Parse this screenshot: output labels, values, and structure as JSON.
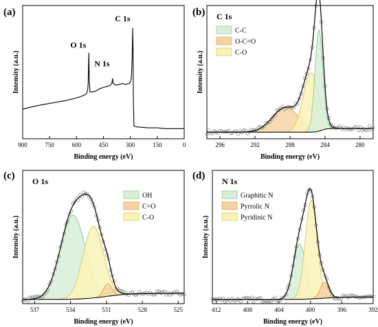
{
  "panels": [
    {
      "id": "a",
      "label": "(a)",
      "type": "line",
      "xlabel": "Binding energy (eV)",
      "ylabel": "Intensity (a.u.)",
      "xlim": [
        900,
        0
      ],
      "ticks": [
        900,
        750,
        600,
        450,
        300,
        150,
        0
      ],
      "annotations": [
        {
          "text": "O 1s",
          "x": 531,
          "y": 1.02
        },
        {
          "text": "N 1s",
          "x": 400,
          "y": 0.8
        },
        {
          "text": "C 1s",
          "x": 285,
          "y": 1.33
        }
      ],
      "survey": [
        [
          900,
          0.3
        ],
        [
          820,
          0.34
        ],
        [
          740,
          0.37
        ],
        [
          660,
          0.4
        ],
        [
          600,
          0.43
        ],
        [
          560,
          0.46
        ],
        [
          545,
          0.48
        ],
        [
          538,
          0.52
        ],
        [
          535,
          0.6
        ],
        [
          532,
          0.9
        ],
        [
          531,
          0.96
        ],
        [
          529,
          0.64
        ],
        [
          525,
          0.5
        ],
        [
          515,
          0.5
        ],
        [
          495,
          0.51
        ],
        [
          470,
          0.54
        ],
        [
          440,
          0.56
        ],
        [
          420,
          0.57
        ],
        [
          410,
          0.58
        ],
        [
          402,
          0.61
        ],
        [
          399,
          0.66
        ],
        [
          396,
          0.6
        ],
        [
          380,
          0.58
        ],
        [
          360,
          0.59
        ],
        [
          345,
          0.6
        ],
        [
          330,
          0.59
        ],
        [
          305,
          0.6
        ],
        [
          295,
          0.65
        ],
        [
          290,
          0.9
        ],
        [
          287,
          1.25
        ],
        [
          285,
          1.0
        ],
        [
          283,
          0.4
        ],
        [
          280,
          0.1
        ],
        [
          260,
          0.09
        ],
        [
          200,
          0.08
        ],
        [
          150,
          0.08
        ],
        [
          100,
          0.07
        ],
        [
          50,
          0.07
        ],
        [
          0,
          0.07
        ]
      ]
    },
    {
      "id": "b",
      "label": "(b)",
      "title": "C 1s",
      "type": "xps-fit",
      "xlabel": "Binding energy (eV)",
      "ylabel": "Intensity (a.u.)",
      "xlim": [
        297.5,
        278.5
      ],
      "ticks": [
        296,
        292,
        288,
        284,
        280
      ],
      "background": {
        "left": 0.05,
        "right": 0.02,
        "center": 284.4,
        "width": 0.3
      },
      "components": [
        {
          "name": "C-C",
          "center": 284.7,
          "height": 0.82,
          "sigma": 0.45,
          "fill": "#d8efd8",
          "stroke": "#8fce9c"
        },
        {
          "name": "O-C=O",
          "center": 288.5,
          "height": 0.2,
          "sigma": 1.5,
          "fill": "#f6d3a5",
          "stroke": "#e6a24b"
        },
        {
          "name": "C-O",
          "center": 285.6,
          "height": 0.48,
          "sigma": 0.9,
          "fill": "#faf3b8",
          "stroke": "#dccb64"
        }
      ],
      "legend": {
        "position": "top-left"
      }
    },
    {
      "id": "c",
      "label": "(c)",
      "title": "O 1s",
      "type": "xps-fit",
      "xlabel": "Binding energy (eV)",
      "ylabel": "Intensity (a.u.)",
      "xlim": [
        538,
        524.5
      ],
      "ticks": [
        537,
        534,
        531,
        528,
        525
      ],
      "background": {
        "left": 0.05,
        "right": 0.0,
        "center": 531.0,
        "width": 1.0
      },
      "components": [
        {
          "name": "OH",
          "center": 533.8,
          "height": 0.68,
          "sigma": 1.05,
          "fill": "#d8efd8",
          "stroke": "#8fce9c"
        },
        {
          "name": "C=O",
          "center": 530.9,
          "height": 0.1,
          "sigma": 0.35,
          "fill": "#f6d3a5",
          "stroke": "#e6a24b"
        },
        {
          "name": "C-O",
          "center": 532.1,
          "height": 0.58,
          "sigma": 0.85,
          "fill": "#faf3b8",
          "stroke": "#dccb64"
        }
      ],
      "legend": {
        "position": "top-right"
      }
    },
    {
      "id": "d",
      "label": "(d)",
      "title": "N 1s",
      "type": "xps-fit",
      "xlabel": "Binding energy (eV)",
      "ylabel": "Intensity (a.u.)",
      "xlim": [
        412.5,
        392
      ],
      "ticks": [
        412,
        408,
        404,
        400,
        396,
        392
      ],
      "background": {
        "left": 0.02,
        "right": 0.0,
        "center": 398.5,
        "width": 1.2
      },
      "components": [
        {
          "name": "Graphitic N",
          "center": 401.4,
          "height": 0.45,
          "sigma": 0.8,
          "fill": "#d8efd8",
          "stroke": "#8fce9c"
        },
        {
          "name": "Pyrrolic N",
          "center": 398.2,
          "height": 0.13,
          "sigma": 0.55,
          "fill": "#f6d3a5",
          "stroke": "#e6a24b"
        },
        {
          "name": "Pyridinic N",
          "center": 399.9,
          "height": 0.8,
          "sigma": 0.75,
          "fill": "#faf3b8",
          "stroke": "#dccb64"
        }
      ],
      "legend": {
        "position": "top-left"
      }
    }
  ]
}
